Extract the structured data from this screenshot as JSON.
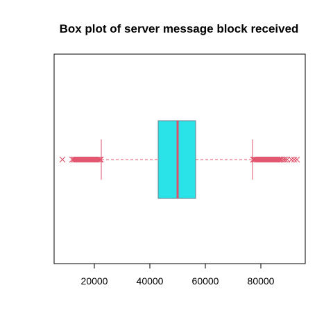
{
  "chart_data": {
    "type": "boxplot",
    "orientation": "horizontal",
    "title": "Box plot of server message block received",
    "xlabel": "",
    "ylabel": "",
    "xlim": [
      5500,
      96000
    ],
    "x_ticks": [
      20000,
      40000,
      60000,
      80000
    ],
    "x_tick_labels": [
      "20000",
      "40000",
      "60000",
      "80000"
    ],
    "box": {
      "whisker_low": 22500,
      "q1": 43000,
      "median": 50000,
      "q3": 56500,
      "whisker_high": 77000
    },
    "outliers_low": [
      8500,
      12000,
      12500,
      13000,
      13500,
      14000,
      14500,
      15000,
      15500,
      16000,
      16500,
      17000,
      17500,
      18000,
      18500,
      19000,
      19500,
      20000,
      20500,
      21000,
      21500,
      22000,
      22300
    ],
    "outliers_high": [
      77200,
      77600,
      78000,
      78500,
      79000,
      79500,
      80000,
      80500,
      81000,
      81500,
      82000,
      82500,
      83000,
      83500,
      84000,
      84500,
      85000,
      85500,
      86000,
      86500,
      87000,
      87500,
      88200,
      88800,
      89500,
      91000,
      92000,
      93000
    ],
    "grid": false,
    "legend": "none",
    "colors": {
      "box_fill": "#29e3e8",
      "box_border": "#6f7f8a",
      "median": "#e0506a",
      "whisker": "#e0506a",
      "outlier": "#e0506a"
    }
  }
}
